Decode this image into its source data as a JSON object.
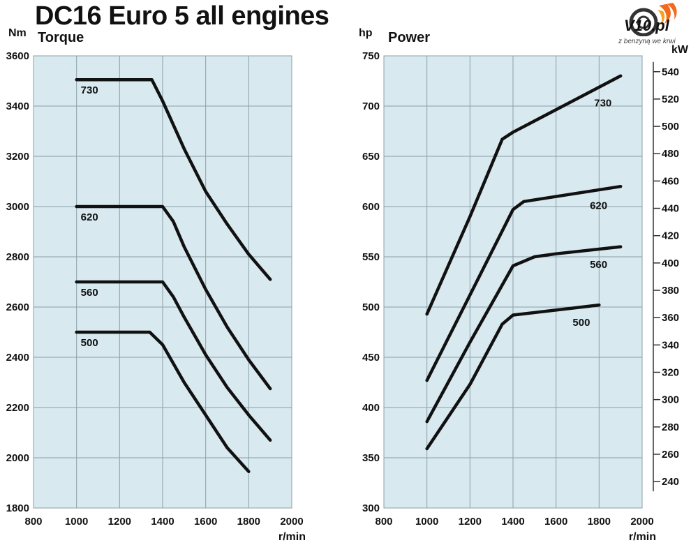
{
  "title": "DC16 Euro 5 all engines",
  "logo": {
    "text": "V10.pl",
    "tagline": "z benzyną we krwi"
  },
  "colors": {
    "plot_bg": "#d8e9ef",
    "grid": "#8aa0a8",
    "line": "#111111"
  },
  "chart_data": [
    {
      "type": "line",
      "title": "Torque",
      "ylabel": "Nm",
      "xlabel": "r/min",
      "xlim": [
        800,
        2000
      ],
      "ylim": [
        1800,
        3600
      ],
      "xticks": [
        800,
        1000,
        1200,
        1400,
        1600,
        1800,
        2000
      ],
      "yticks": [
        1800,
        2000,
        2200,
        2400,
        2600,
        2800,
        3000,
        3200,
        3400,
        3600
      ],
      "grid": true,
      "series": [
        {
          "name": "730",
          "x": [
            1000,
            1350,
            1400,
            1500,
            1600,
            1700,
            1800,
            1900
          ],
          "y": [
            3505,
            3505,
            3420,
            3230,
            3060,
            2930,
            2810,
            2710
          ]
        },
        {
          "name": "620",
          "x": [
            1000,
            1400,
            1450,
            1500,
            1600,
            1700,
            1800,
            1900
          ],
          "y": [
            3000,
            3000,
            2940,
            2840,
            2670,
            2520,
            2390,
            2275
          ]
        },
        {
          "name": "560",
          "x": [
            1000,
            1400,
            1450,
            1500,
            1600,
            1700,
            1800,
            1900
          ],
          "y": [
            2700,
            2700,
            2640,
            2560,
            2410,
            2280,
            2170,
            2070
          ]
        },
        {
          "name": "500",
          "x": [
            1000,
            1340,
            1400,
            1500,
            1600,
            1700,
            1800
          ],
          "y": [
            2500,
            2500,
            2450,
            2300,
            2170,
            2040,
            1945
          ]
        }
      ]
    },
    {
      "type": "line",
      "title": "Power",
      "ylabel": "hp",
      "y2label": "kW",
      "xlabel": "r/min",
      "xlim": [
        800,
        2000
      ],
      "ylim": [
        300,
        750
      ],
      "xticks": [
        800,
        1000,
        1200,
        1400,
        1600,
        1800,
        2000
      ],
      "yticks": [
        300,
        350,
        400,
        450,
        500,
        550,
        600,
        650,
        700,
        750
      ],
      "y2ticks": [
        240,
        260,
        280,
        300,
        320,
        340,
        360,
        380,
        400,
        420,
        440,
        460,
        480,
        500,
        520,
        540
      ],
      "grid": true,
      "series": [
        {
          "name": "730",
          "x": [
            1000,
            1200,
            1350,
            1400,
            1900
          ],
          "y": [
            493,
            590,
            667,
            674,
            730
          ]
        },
        {
          "name": "620",
          "x": [
            1000,
            1200,
            1400,
            1450,
            1900
          ],
          "y": [
            427,
            512,
            597,
            605,
            620
          ]
        },
        {
          "name": "560",
          "x": [
            1000,
            1200,
            1400,
            1500,
            1600,
            1900
          ],
          "y": [
            386,
            465,
            541,
            550,
            553,
            560
          ]
        },
        {
          "name": "500",
          "x": [
            1000,
            1200,
            1350,
            1400,
            1800
          ],
          "y": [
            359,
            423,
            483,
            492,
            502
          ]
        }
      ]
    }
  ]
}
